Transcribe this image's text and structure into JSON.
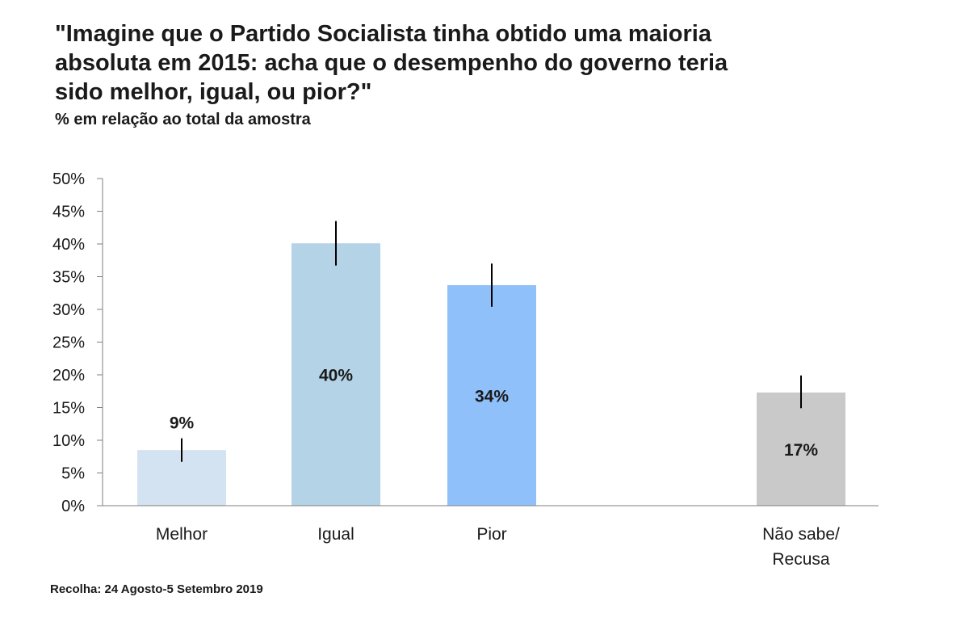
{
  "chart_data": {
    "type": "bar",
    "title_lines": [
      "\"Imagine que o Partido Socialista tinha obtido uma maioria",
      "absoluta em 2015: acha que o desempenho do governo teria",
      "sido melhor, igual, ou pior?\""
    ],
    "subtitle": "% em relação ao total da amostra",
    "categories": [
      {
        "lines": [
          "Melhor"
        ]
      },
      {
        "lines": [
          "Igual"
        ]
      },
      {
        "lines": [
          "Pior"
        ]
      },
      {
        "lines": [
          "Não sabe/",
          "Recusa"
        ]
      }
    ],
    "values": [
      8.5,
      40.1,
      33.7,
      17.3
    ],
    "data_labels": [
      "9%",
      "40%",
      "34%",
      "17%"
    ],
    "error_low": [
      6.7,
      36.7,
      30.4,
      14.9
    ],
    "error_high": [
      10.3,
      43.5,
      37.0,
      19.9
    ],
    "colors": [
      "#d4e3f1",
      "#b5d3e7",
      "#8fc0fa",
      "#c9c9c9"
    ],
    "label_position": [
      "above",
      "inside",
      "inside",
      "inside"
    ],
    "ylim": [
      0,
      50
    ],
    "yticks": [
      0,
      5,
      10,
      15,
      20,
      25,
      30,
      35,
      40,
      45,
      50
    ],
    "ytick_labels": [
      "0%",
      "5%",
      "10%",
      "15%",
      "20%",
      "25%",
      "30%",
      "35%",
      "40%",
      "45%",
      "50%"
    ],
    "grid": false,
    "xlabel": "",
    "ylabel": ""
  },
  "footer": {
    "source": "Recolha: 24 Agosto-5 Setembro  2019"
  }
}
